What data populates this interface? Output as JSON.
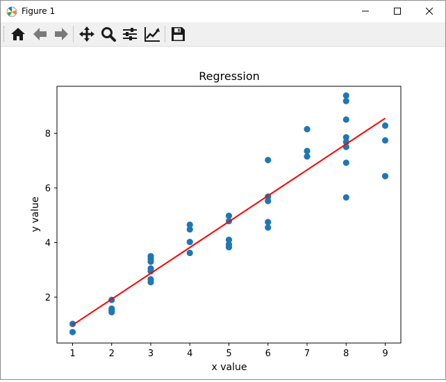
{
  "window": {
    "title": "Figure 1"
  },
  "toolbar": {
    "buttons": [
      {
        "name": "home-icon"
      },
      {
        "name": "back-arrow-icon"
      },
      {
        "name": "forward-arrow-icon"
      },
      {
        "name": "pan-icon"
      },
      {
        "name": "zoom-icon"
      },
      {
        "name": "configure-subplots-icon"
      },
      {
        "name": "edit-axis-icon"
      },
      {
        "name": "save-icon"
      }
    ]
  },
  "chart_data": {
    "type": "scatter",
    "title": "Regression",
    "xlabel": "x value",
    "ylabel": "y value",
    "xlim": [
      0.6,
      9.4
    ],
    "ylim": [
      0.32,
      9.72
    ],
    "xticks": [
      "1",
      "2",
      "3",
      "4",
      "5",
      "6",
      "7",
      "8",
      "9"
    ],
    "yticks": [
      "2",
      "4",
      "6",
      "8"
    ],
    "grid": false,
    "points": [
      {
        "x": 1,
        "y": 1.02
      },
      {
        "x": 1,
        "y": 0.72
      },
      {
        "x": 2,
        "y": 1.9
      },
      {
        "x": 2,
        "y": 1.58
      },
      {
        "x": 2,
        "y": 1.52
      },
      {
        "x": 2,
        "y": 1.45
      },
      {
        "x": 3,
        "y": 3.5
      },
      {
        "x": 3,
        "y": 3.4
      },
      {
        "x": 3,
        "y": 3.3
      },
      {
        "x": 3,
        "y": 3.05
      },
      {
        "x": 3,
        "y": 2.95
      },
      {
        "x": 3,
        "y": 2.65
      },
      {
        "x": 3,
        "y": 2.55
      },
      {
        "x": 4,
        "y": 4.65
      },
      {
        "x": 4,
        "y": 4.48
      },
      {
        "x": 4,
        "y": 4.02
      },
      {
        "x": 4,
        "y": 3.62
      },
      {
        "x": 5,
        "y": 4.98
      },
      {
        "x": 5,
        "y": 4.78
      },
      {
        "x": 5,
        "y": 4.1
      },
      {
        "x": 5,
        "y": 3.93
      },
      {
        "x": 5,
        "y": 3.83
      },
      {
        "x": 6,
        "y": 7.02
      },
      {
        "x": 6,
        "y": 5.68
      },
      {
        "x": 6,
        "y": 5.52
      },
      {
        "x": 6,
        "y": 4.75
      },
      {
        "x": 6,
        "y": 4.55
      },
      {
        "x": 7,
        "y": 8.15
      },
      {
        "x": 7,
        "y": 7.35
      },
      {
        "x": 7,
        "y": 7.15
      },
      {
        "x": 8,
        "y": 9.38
      },
      {
        "x": 8,
        "y": 9.18
      },
      {
        "x": 8,
        "y": 8.5
      },
      {
        "x": 8,
        "y": 7.85
      },
      {
        "x": 8,
        "y": 7.68
      },
      {
        "x": 8,
        "y": 7.5
      },
      {
        "x": 8,
        "y": 6.92
      },
      {
        "x": 8,
        "y": 5.65
      },
      {
        "x": 9,
        "y": 8.28
      },
      {
        "x": 9,
        "y": 7.74
      },
      {
        "x": 9,
        "y": 6.43
      }
    ],
    "regression_line": {
      "x": [
        1,
        9
      ],
      "y": [
        0.98,
        8.55
      ]
    },
    "colors": {
      "points": "#1f77b4",
      "line": "#ff0000",
      "axes": "#000000"
    }
  }
}
